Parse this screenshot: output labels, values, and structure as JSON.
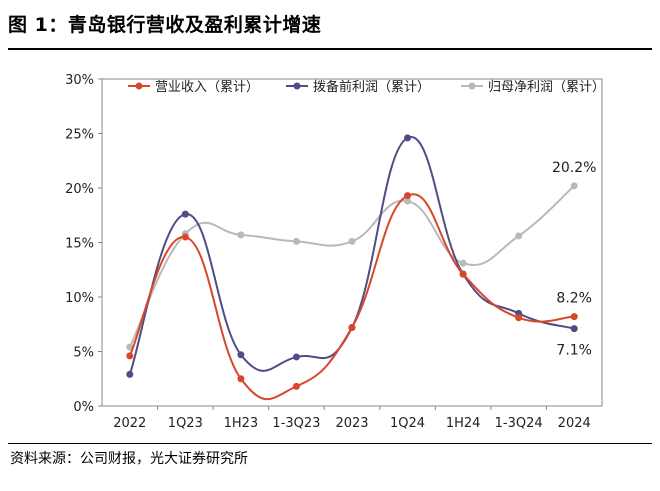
{
  "figure": {
    "title": "图 1：青岛银行营收及盈利累计增速",
    "source": "资料来源：公司财报，光大证券研究所"
  },
  "colors": {
    "revenue": "#d9472b",
    "ppop": "#514c84",
    "net_profit": "#b9b9b9",
    "axis": "#888888"
  },
  "chart_data": {
    "type": "line",
    "categories": [
      "2022",
      "1Q23",
      "1H23",
      "1-3Q23",
      "2023",
      "1Q24",
      "1H24",
      "1-3Q24",
      "2024"
    ],
    "ylim": [
      0,
      30
    ],
    "yticks": [
      0,
      5,
      10,
      15,
      20,
      25,
      30
    ],
    "ytick_labels": [
      "0%",
      "5%",
      "10%",
      "15%",
      "20%",
      "25%",
      "30%"
    ],
    "xlabel": "",
    "ylabel": "",
    "legend_position": "top",
    "series": [
      {
        "name": "营业收入（累计）",
        "color_key": "revenue",
        "values": [
          4.6,
          15.5,
          2.5,
          1.8,
          7.2,
          19.3,
          12.1,
          8.1,
          8.2
        ]
      },
      {
        "name": "拨备前利润（累计）",
        "color_key": "ppop",
        "values": [
          2.9,
          17.6,
          4.7,
          4.5,
          7.2,
          24.6,
          12.1,
          8.5,
          7.1
        ]
      },
      {
        "name": "归母净利润（累计）",
        "color_key": "net_profit",
        "values": [
          5.4,
          15.8,
          15.7,
          15.1,
          15.1,
          18.8,
          13.1,
          15.6,
          20.2
        ]
      }
    ],
    "annotations": [
      {
        "text": "20.2%",
        "series": 2,
        "index": 8,
        "placement": "above"
      },
      {
        "text": "8.2%",
        "series": 0,
        "index": 8,
        "placement": "above"
      },
      {
        "text": "7.1%",
        "series": 1,
        "index": 8,
        "placement": "below"
      }
    ]
  }
}
